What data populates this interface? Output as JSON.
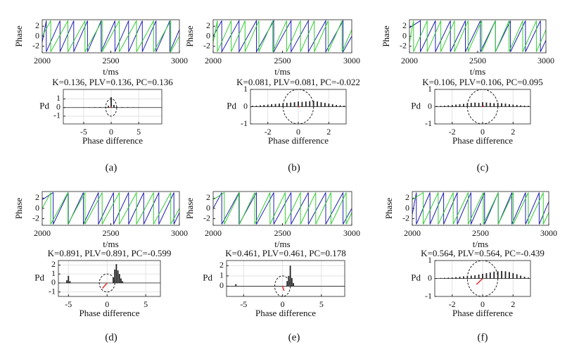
{
  "panel_labels": [
    "(a)",
    "(b)",
    "(c)",
    "(d)",
    "(e)",
    "(f)"
  ],
  "chart_data": [
    {
      "type": "line",
      "xlabel": "t/ms",
      "ylabel": "Phase",
      "xlim": [
        2000,
        3000
      ],
      "xticks": [
        2000,
        2500,
        3000
      ],
      "ylim": [
        -3.3,
        3.3
      ],
      "yticks": [
        2,
        0,
        -2
      ],
      "series": [
        {
          "color": "#1f1fb4",
          "x": [
            2000,
            2030,
            2030,
            2130,
            2130,
            2230,
            2230,
            2330,
            2330,
            2430,
            2430,
            2530,
            2530,
            2630,
            2630,
            2730,
            2730,
            2830,
            2830,
            2930,
            2930,
            3000
          ],
          "values": [
            -1.2,
            3.1,
            -3.1,
            3.1,
            -3.1,
            3.1,
            -3.1,
            3.1,
            -3.1,
            3.1,
            -3.1,
            3.1,
            -3.1,
            3.1,
            -3.1,
            3.1,
            -3.1,
            3.1,
            -3.1,
            3.1,
            -3.1,
            1.3
          ]
        },
        {
          "color": "#33cc33",
          "x": [
            2000,
            2062,
            2062,
            2187,
            2187,
            2312,
            2312,
            2437,
            2437,
            2562,
            2562,
            2687,
            2687,
            2812,
            2812,
            2937,
            2937,
            3000
          ],
          "values": [
            0,
            3.1,
            -3.1,
            3.1,
            -3.1,
            3.1,
            -3.1,
            3.1,
            -3.1,
            3.1,
            -3.1,
            3.1,
            -3.1,
            3.1,
            -3.1,
            3.1,
            -3.1,
            0
          ]
        }
      ]
    },
    {
      "type": "bar",
      "title": "K=0.136, PLV=0.136, PC=0.136",
      "xlabel": "Phase difference",
      "ylabel": "Pd",
      "color": "#222222",
      "grid": true,
      "xlim": [
        -8.7,
        9.2
      ],
      "xticks": [
        -5,
        0,
        5
      ],
      "ylim": [
        -1.9,
        2.1
      ],
      "yticks": [
        1,
        0,
        -1
      ],
      "x": [
        -6,
        -5,
        -4,
        -3,
        -2,
        -1,
        -0.5,
        0,
        0.5,
        1,
        2,
        3,
        4,
        5,
        6
      ],
      "values": [
        0.02,
        0.03,
        0.04,
        0.05,
        0.06,
        0.08,
        0.2,
        1.2,
        0.3,
        0.08,
        0.06,
        0.05,
        0.04,
        0.03,
        0.02
      ],
      "circle_radius": 1,
      "vector": {
        "x": 0.05,
        "y": 0.13
      },
      "vector_color": "#e03030"
    },
    {
      "type": "line",
      "xlabel": "t/ms",
      "ylabel": "Phase",
      "xlim": [
        2000,
        3000
      ],
      "xticks": [
        2000,
        2500,
        3000
      ],
      "ylim": [
        -3.3,
        3.3
      ],
      "yticks": [
        2,
        0,
        -2
      ],
      "series": [
        {
          "color": "#1f1fb4",
          "x": [
            2000,
            2062,
            2062,
            2187,
            2187,
            2312,
            2312,
            2437,
            2437,
            2562,
            2562,
            2687,
            2687,
            2812,
            2812,
            2937,
            2937,
            3000
          ],
          "values": [
            0,
            3.1,
            -3.1,
            3.1,
            -3.1,
            3.1,
            -3.1,
            3.1,
            -3.1,
            3.1,
            -3.1,
            3.1,
            -3.1,
            3.1,
            -3.1,
            3.1,
            -3.1,
            0
          ]
        },
        {
          "color": "#33cc33",
          "x": [
            2000,
            2030,
            2030,
            2130,
            2130,
            2230,
            2230,
            2330,
            2330,
            2430,
            2430,
            2530,
            2530,
            2630,
            2630,
            2730,
            2730,
            2830,
            2830,
            2930,
            2930,
            3000
          ],
          "values": [
            -1.2,
            3.1,
            -3.1,
            3.1,
            -3.1,
            3.1,
            -3.1,
            3.1,
            -3.1,
            3.1,
            -3.1,
            3.1,
            -3.1,
            3.1,
            -3.1,
            3.1,
            -3.1,
            3.1,
            -3.1,
            3.1,
            -3.1,
            1.3
          ]
        }
      ]
    },
    {
      "type": "bar",
      "title": "K=0.081, PLV=0.081, PC=-0.022",
      "xlabel": "Phase difference",
      "ylabel": "Pd",
      "color": "#222222",
      "grid": true,
      "xlim": [
        -3.14,
        3.14
      ],
      "xticks": [
        -2,
        0,
        2
      ],
      "ylim": [
        -1,
        1
      ],
      "yticks": [
        1,
        0,
        -1
      ],
      "x": [
        -3,
        -2.75,
        -2.5,
        -2.25,
        -2,
        -1.75,
        -1.5,
        -1.25,
        -1,
        -0.75,
        -0.5,
        -0.25,
        0,
        0.25,
        0.5,
        0.75,
        1,
        1.25,
        1.5,
        1.75,
        2,
        2.25,
        2.5,
        2.75,
        3
      ],
      "values": [
        0.05,
        0.06,
        0.08,
        0.1,
        0.12,
        0.14,
        0.16,
        0.18,
        0.2,
        0.22,
        0.24,
        0.26,
        0.3,
        0.28,
        0.3,
        0.32,
        0.34,
        0.3,
        0.26,
        0.22,
        0.18,
        0.14,
        0.1,
        0.08,
        0.06
      ],
      "circle_radius": 1,
      "vector": {
        "x": 0.08,
        "y": -0.01
      },
      "vector_color": "#e03030"
    },
    {
      "type": "line",
      "xlabel": "t/ms",
      "ylabel": "Phase",
      "xlim": [
        2000,
        3000
      ],
      "xticks": [
        2000,
        2500,
        3000
      ],
      "ylim": [
        -3.3,
        3.3
      ],
      "yticks": [
        2,
        0,
        -2
      ],
      "series": [
        {
          "color": "#1f1fb4",
          "x": [
            2000,
            2080,
            2080,
            2190,
            2190,
            2300,
            2300,
            2410,
            2410,
            2520,
            2520,
            2630,
            2630,
            2740,
            2740,
            2850,
            2850,
            2960,
            2960,
            3000
          ],
          "values": [
            1.7,
            3.1,
            -3.1,
            3.1,
            -3.1,
            3.1,
            -3.1,
            3.1,
            -3.1,
            3.1,
            -3.1,
            3.1,
            -3.1,
            3.1,
            -3.1,
            3.1,
            -3.1,
            3.1,
            -3.1,
            -0.8
          ]
        },
        {
          "color": "#33cc33",
          "x": [
            2000,
            2030,
            2030,
            2130,
            2130,
            2230,
            2230,
            2330,
            2330,
            2430,
            2430,
            2530,
            2530,
            2630,
            2630,
            2730,
            2730,
            2830,
            2830,
            2930,
            2930,
            3000
          ],
          "values": [
            -1.2,
            3.1,
            -3.1,
            3.1,
            -3.1,
            3.1,
            -3.1,
            3.1,
            -3.1,
            3.1,
            -3.1,
            3.1,
            -3.1,
            3.1,
            -3.1,
            3.1,
            -3.1,
            3.1,
            -3.1,
            3.1,
            -3.1,
            1.3
          ]
        }
      ]
    },
    {
      "type": "bar",
      "title": "K=0.106, PLV=0.106, PC=0.095",
      "xlabel": "Phase difference",
      "ylabel": "Pd",
      "color": "#222222",
      "grid": true,
      "xlim": [
        -3.14,
        3.14
      ],
      "xticks": [
        -2,
        0,
        2
      ],
      "ylim": [
        -1,
        1
      ],
      "yticks": [
        1,
        0,
        -1
      ],
      "x": [
        -3,
        -2.75,
        -2.5,
        -2.25,
        -2,
        -1.75,
        -1.5,
        -1.25,
        -1,
        -0.75,
        -0.5,
        -0.25,
        0,
        0.25,
        0.5,
        0.75,
        1,
        1.25,
        1.5,
        1.75,
        2,
        2.25,
        2.5,
        2.75,
        3
      ],
      "values": [
        0.04,
        0.05,
        0.06,
        0.08,
        0.1,
        0.12,
        0.14,
        0.16,
        0.2,
        0.22,
        0.24,
        0.22,
        0.26,
        0.24,
        0.22,
        0.2,
        0.22,
        0.2,
        0.18,
        0.14,
        0.12,
        0.1,
        0.08,
        0.06,
        0.05
      ],
      "circle_radius": 1,
      "vector": {
        "x": 0.09,
        "y": 0.05
      },
      "vector_color": "#e03030"
    },
    {
      "type": "line",
      "xlabel": "t/ms",
      "ylabel": "Phase",
      "xlim": [
        2000,
        3000
      ],
      "xticks": [
        2000,
        2500,
        3000
      ],
      "ylim": [
        -3.3,
        3.3
      ],
      "yticks": [
        2,
        0,
        -2
      ],
      "series": [
        {
          "color": "#1f1fb4",
          "x": [
            2000,
            2080,
            2080,
            2190,
            2190,
            2300,
            2300,
            2410,
            2410,
            2520,
            2520,
            2630,
            2630,
            2740,
            2740,
            2850,
            2850,
            2960,
            2960,
            3000
          ],
          "values": [
            1.7,
            3.1,
            -3.1,
            3.1,
            -3.1,
            3.1,
            -3.1,
            3.1,
            -3.1,
            3.1,
            -3.1,
            3.1,
            -3.1,
            3.1,
            -3.1,
            3.1,
            -3.1,
            3.1,
            -3.1,
            -0.8
          ]
        },
        {
          "color": "#33cc33",
          "x": [
            2000,
            2062,
            2062,
            2187,
            2187,
            2312,
            2312,
            2437,
            2437,
            2562,
            2562,
            2687,
            2687,
            2812,
            2812,
            2937,
            2937,
            3000
          ],
          "values": [
            0,
            3.1,
            -3.1,
            3.1,
            -3.1,
            3.1,
            -3.1,
            3.1,
            -3.1,
            3.1,
            -3.1,
            3.1,
            -3.1,
            3.1,
            -3.1,
            3.1,
            -3.1,
            0
          ]
        }
      ]
    },
    {
      "type": "bar",
      "title": "K=0.891, PLV=0.891, PC=-0.599",
      "xlabel": "Phase difference",
      "ylabel": "Pd",
      "color": "#222222",
      "grid": true,
      "xlim": [
        -6.3,
        6.9
      ],
      "xticks": [
        -5,
        0,
        5
      ],
      "ylim": [
        -1.5,
        2.5
      ],
      "yticks": [
        2,
        1,
        0,
        -1
      ],
      "x": [
        -5.2,
        -5,
        -4.8,
        -1,
        0,
        0.8,
        1,
        1.2,
        1.4,
        1.6,
        1.8,
        2
      ],
      "values": [
        0.3,
        0.8,
        0.2,
        0.02,
        0.02,
        0.6,
        1.5,
        2.1,
        1.4,
        1,
        0.5,
        0.2
      ],
      "circle_radius": 1,
      "vector": {
        "x": -0.6,
        "y": -0.6
      },
      "vector_color": "#e03030"
    },
    {
      "type": "line",
      "xlabel": "t/ms",
      "ylabel": "Phase",
      "xlim": [
        2000,
        3000
      ],
      "xticks": [
        2000,
        2500,
        3000
      ],
      "ylim": [
        -3.3,
        3.3
      ],
      "yticks": [
        2,
        0,
        -2
      ],
      "series": [
        {
          "color": "#1f1fb4",
          "x": [
            2000,
            2062,
            2062,
            2187,
            2187,
            2312,
            2312,
            2437,
            2437,
            2562,
            2562,
            2687,
            2687,
            2812,
            2812,
            2937,
            2937,
            3000
          ],
          "values": [
            0,
            3.1,
            -3.1,
            3.1,
            -3.1,
            3.1,
            -3.1,
            3.1,
            -3.1,
            3.1,
            -3.1,
            3.1,
            -3.1,
            3.1,
            -3.1,
            3.1,
            -3.1,
            0
          ]
        },
        {
          "color": "#33cc33",
          "x": [
            2000,
            2080,
            2080,
            2190,
            2190,
            2300,
            2300,
            2410,
            2410,
            2520,
            2520,
            2630,
            2630,
            2740,
            2740,
            2850,
            2850,
            2960,
            2960,
            3000
          ],
          "values": [
            1.7,
            3.1,
            -3.1,
            3.1,
            -3.1,
            3.1,
            -3.1,
            3.1,
            -3.1,
            3.1,
            -3.1,
            3.1,
            -3.1,
            3.1,
            -3.1,
            3.1,
            -3.1,
            3.1,
            -3.1,
            -0.8
          ]
        }
      ]
    },
    {
      "type": "bar",
      "title": "K=0.461, PLV=0.461, PC=0.178",
      "xlabel": "Phase difference",
      "ylabel": "Pd",
      "color": "#222222",
      "grid": true,
      "xlim": [
        -7.2,
        8
      ],
      "xticks": [
        -5,
        0,
        5
      ],
      "ylim": [
        -1,
        2.5
      ],
      "yticks": [
        2,
        1,
        0
      ],
      "x": [
        -6,
        0.6,
        0.8,
        1,
        1.2,
        1.4
      ],
      "values": [
        0.2,
        0.5,
        1,
        2,
        0.8,
        0.3
      ],
      "circle_radius": 1,
      "vector": {
        "x": 0.2,
        "y": -0.45
      },
      "vector_color": "#e03030"
    },
    {
      "type": "line",
      "xlabel": "t/ms",
      "ylabel": "Phase",
      "xlim": [
        2000,
        3000
      ],
      "xticks": [
        2000,
        2500,
        3000
      ],
      "ylim": [
        -3.3,
        3.3
      ],
      "yticks": [
        2,
        0,
        -2
      ],
      "series": [
        {
          "color": "#1f1fb4",
          "x": [
            2000,
            2030,
            2030,
            2130,
            2130,
            2230,
            2230,
            2330,
            2330,
            2430,
            2430,
            2530,
            2530,
            2630,
            2630,
            2730,
            2730,
            2830,
            2830,
            2930,
            2930,
            3000
          ],
          "values": [
            -1.2,
            3.1,
            -3.1,
            3.1,
            -3.1,
            3.1,
            -3.1,
            3.1,
            -3.1,
            3.1,
            -3.1,
            3.1,
            -3.1,
            3.1,
            -3.1,
            3.1,
            -3.1,
            3.1,
            -3.1,
            3.1,
            -3.1,
            1.3
          ]
        },
        {
          "color": "#33cc33",
          "x": [
            2000,
            2080,
            2080,
            2190,
            2190,
            2300,
            2300,
            2410,
            2410,
            2520,
            2520,
            2630,
            2630,
            2740,
            2740,
            2850,
            2850,
            2960,
            2960,
            3000
          ],
          "values": [
            1.7,
            3.1,
            -3.1,
            3.1,
            -3.1,
            3.1,
            -3.1,
            3.1,
            -3.1,
            3.1,
            -3.1,
            3.1,
            -3.1,
            3.1,
            -3.1,
            3.1,
            -3.1,
            3.1,
            -3.1,
            -0.8
          ]
        }
      ]
    },
    {
      "type": "bar",
      "title": "K=0.564, PLV=0.564, PC=-0.439",
      "xlabel": "Phase difference",
      "ylabel": "Pd",
      "color": "#222222",
      "grid": true,
      "xlim": [
        -3.14,
        3.14
      ],
      "xticks": [
        -2,
        0,
        2
      ],
      "ylim": [
        -1,
        1
      ],
      "yticks": [
        1,
        0,
        -1
      ],
      "x": [
        -3,
        -2.75,
        -2.5,
        -2.25,
        -2,
        -1.75,
        -1.5,
        -1.25,
        -1,
        -0.75,
        -0.5,
        -0.25,
        0,
        0.25,
        0.5,
        0.75,
        1,
        1.25,
        1.5,
        1.75,
        2,
        2.25,
        2.5,
        2.75,
        3
      ],
      "values": [
        0.02,
        0.03,
        0.04,
        0.05,
        0.06,
        0.08,
        0.1,
        0.12,
        0.14,
        0.16,
        0.18,
        0.22,
        0.26,
        0.3,
        0.34,
        0.38,
        0.4,
        0.42,
        0.4,
        0.36,
        0.3,
        0.24,
        0.16,
        0.1,
        0.05
      ],
      "circle_radius": 1,
      "vector": {
        "x": -0.4,
        "y": -0.33
      },
      "vector_color": "#e03030"
    }
  ]
}
